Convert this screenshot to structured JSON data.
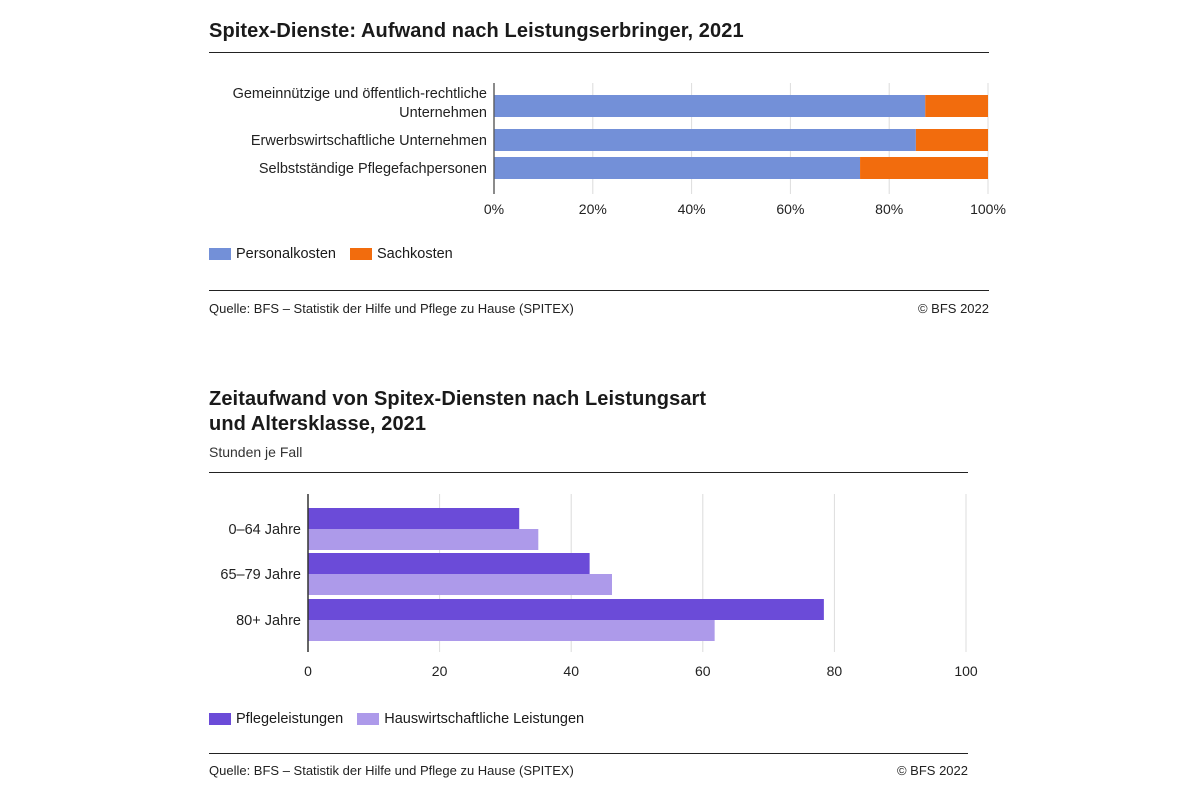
{
  "chart1": {
    "title": "Spitex-Dienste: Aufwand nach Leistungserbringer, 2021",
    "source": "Quelle: BFS – Statistik der Hilfe und Pflege zu Hause (SPITEX)",
    "copyright": "© BFS 2022",
    "legend": [
      {
        "name": "Personalkosten",
        "color": "#7390d8"
      },
      {
        "name": "Sachkosten",
        "color": "#f26c0d"
      }
    ]
  },
  "chart2": {
    "title_line1": "Zeitaufwand von Spitex-Diensten nach Leistungsart",
    "title_line2": "und Altersklasse, 2021",
    "subtitle": "Stunden je Fall",
    "source": "Quelle: BFS – Statistik der Hilfe und Pflege zu Hause (SPITEX)",
    "copyright": "© BFS 2022",
    "legend": [
      {
        "name": "Pflegeleistungen",
        "color": "#6b4bd8"
      },
      {
        "name": "Hauswirtschaftliche Leistungen",
        "color": "#ad9aea"
      }
    ]
  },
  "chart_data": [
    {
      "type": "bar",
      "orientation": "horizontal",
      "stacked": true,
      "title": "Spitex-Dienste: Aufwand nach Leistungserbringer, 2021",
      "categories": [
        [
          "Gemeinnützige und öffentlich-rechtliche",
          "Unternehmen"
        ],
        [
          "Erwerbswirtschaftliche Unternehmen"
        ],
        [
          "Selbstständige Pflegefachpersonen"
        ]
      ],
      "series": [
        {
          "name": "Personalkosten",
          "values": [
            87.3,
            85.4,
            74.1
          ],
          "color": "#7390d8"
        },
        {
          "name": "Sachkosten",
          "values": [
            12.7,
            14.6,
            25.9
          ],
          "color": "#f26c0d"
        }
      ],
      "xlim": [
        0,
        100
      ],
      "xticks": [
        "0%",
        "20%",
        "40%",
        "60%",
        "80%",
        "100%"
      ],
      "grid": true,
      "legend_position": "bottom"
    },
    {
      "type": "bar",
      "orientation": "horizontal",
      "stacked": false,
      "categories": [
        "0–64 Jahre",
        "65–79 Jahre",
        "80+ Jahre"
      ],
      "series": [
        {
          "name": "Pflegeleistungen",
          "values": [
            32.1,
            42.8,
            78.4
          ],
          "color": "#6b4bd8"
        },
        {
          "name": "Hauswirtschaftliche Leistungen",
          "values": [
            35.0,
            46.2,
            61.8
          ],
          "color": "#ad9aea"
        }
      ],
      "xlim": [
        0,
        100
      ],
      "xticks": [
        "0",
        "20",
        "40",
        "60",
        "80",
        "100"
      ],
      "grid": true,
      "legend_position": "bottom"
    }
  ]
}
